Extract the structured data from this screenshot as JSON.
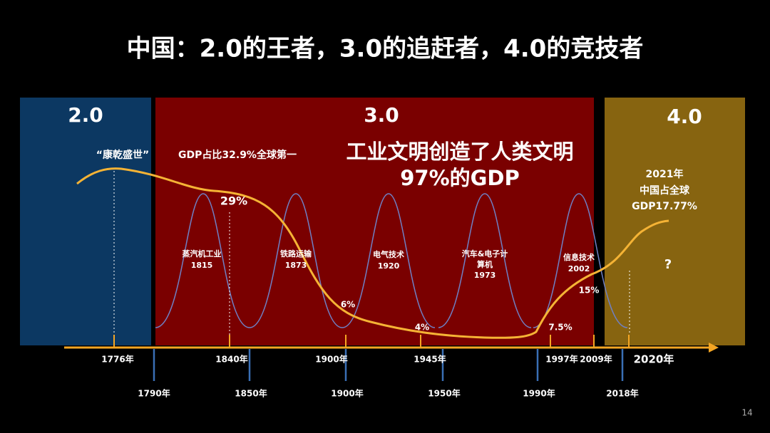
{
  "title": "中国：2.0的王者，3.0的追赶者，4.0的竞技者",
  "eras": [
    "2.0",
    "3.0",
    "4.0"
  ],
  "annotations": {
    "kangqian": "“康乾盛世”",
    "gdp_share": "GDP占比32.9%全球第一",
    "industrial": [
      "工业文明创造了人类文明",
      "97%的GDP"
    ],
    "china_2021": [
      "2021年",
      "中国占全球",
      "GDP17.77%"
    ],
    "question": "?"
  },
  "waves": [
    {
      "name": [
        "蒸汽机工业"
      ],
      "year": "1815"
    },
    {
      "name": [
        "铁路运输"
      ],
      "year": "1873"
    },
    {
      "name": [
        "电气技术"
      ],
      "year": "1920"
    },
    {
      "name": [
        "汽车&电子计",
        "算机"
      ],
      "year": "1973"
    },
    {
      "name": [
        "信息技术"
      ],
      "year": "2002"
    }
  ],
  "curve_labels": [
    "29%",
    "6%",
    "4%",
    "7.5%",
    "15%"
  ],
  "timeline_top": [
    "1776年",
    "1840年",
    "1900年",
    "1945年",
    "1997年",
    "2009年",
    "2020年"
  ],
  "timeline_bottom": [
    "1790年",
    "1850年",
    "1900年",
    "1950年",
    "1990年",
    "2018年"
  ],
  "page_number": "14"
}
